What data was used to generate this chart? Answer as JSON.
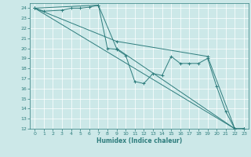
{
  "title": "",
  "xlabel": "Humidex (Indice chaleur)",
  "xlim": [
    -0.5,
    23.5
  ],
  "ylim": [
    12,
    24.5
  ],
  "yticks": [
    12,
    13,
    14,
    15,
    16,
    17,
    18,
    19,
    20,
    21,
    22,
    23,
    24
  ],
  "xticks": [
    0,
    1,
    2,
    3,
    4,
    5,
    6,
    7,
    8,
    9,
    10,
    11,
    12,
    13,
    14,
    15,
    16,
    17,
    18,
    19,
    20,
    21,
    22,
    23
  ],
  "bg_color": "#cce8e8",
  "grid_color": "#ffffff",
  "line_color": "#2e7d7d",
  "lines": [
    {
      "x": [
        0,
        1,
        3,
        4,
        5,
        6,
        7,
        8,
        9,
        10,
        11,
        12,
        13,
        14,
        15,
        16,
        17,
        18,
        19,
        20,
        21,
        22,
        23
      ],
      "y": [
        24,
        23.7,
        23.8,
        24.0,
        24.0,
        24.1,
        24.3,
        20.0,
        19.9,
        19.3,
        16.7,
        16.5,
        17.5,
        17.3,
        19.2,
        18.5,
        18.5,
        18.5,
        19.0,
        16.2,
        13.7,
        12.0,
        12.0
      ]
    },
    {
      "x": [
        0,
        7,
        9,
        22,
        23
      ],
      "y": [
        24,
        24.3,
        20.0,
        12.0,
        12.0
      ]
    },
    {
      "x": [
        0,
        22,
        23
      ],
      "y": [
        24,
        12.0,
        12.0
      ]
    },
    {
      "x": [
        0,
        9,
        19,
        22
      ],
      "y": [
        24,
        20.7,
        19.2,
        12.0
      ]
    }
  ]
}
